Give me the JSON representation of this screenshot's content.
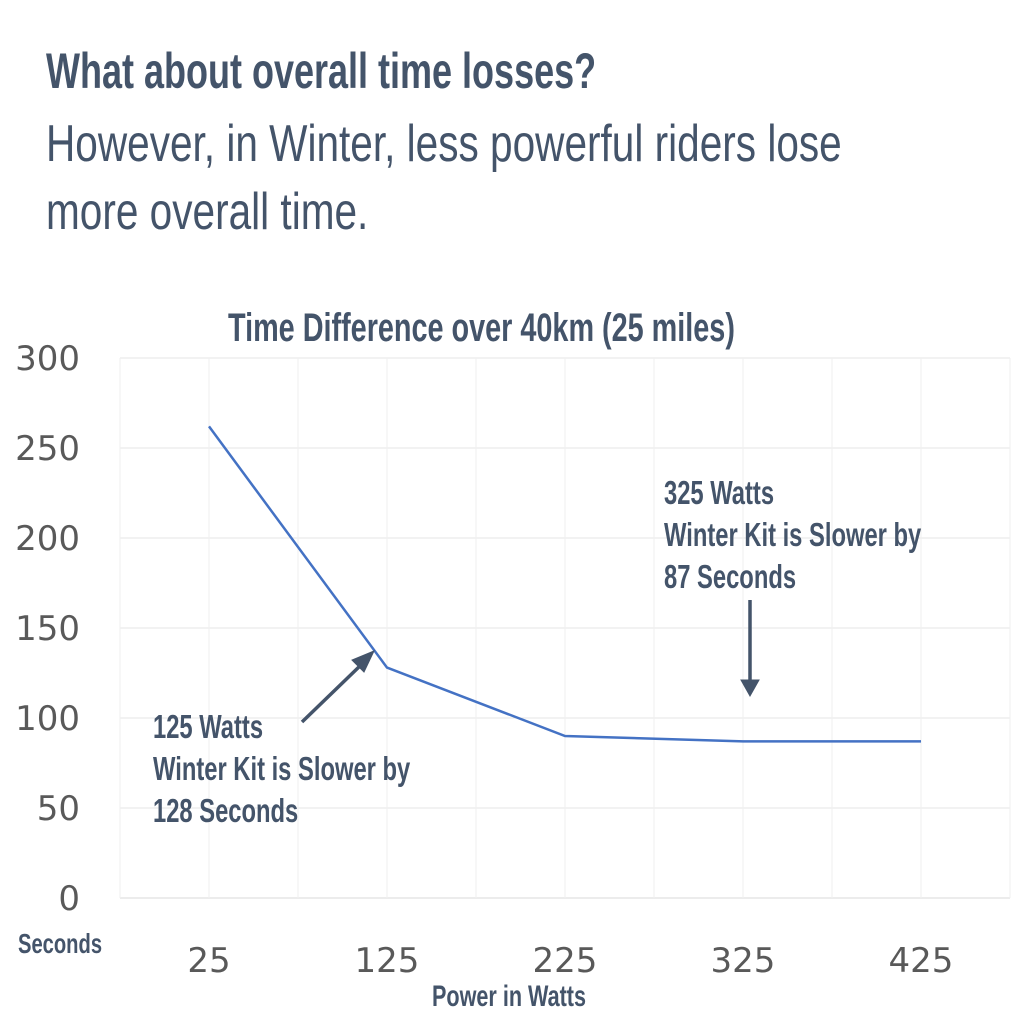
{
  "heading": "What about overall time losses?",
  "subtitle_lines": [
    "However, in Winter, less powerful riders lose",
    "more overall time."
  ],
  "chart_data": {
    "type": "line",
    "title": "Time Difference over 40km (25 miles)",
    "xlabel": "Power in Watts",
    "ylabel": "Seconds",
    "categories": [
      "25",
      "125",
      "225",
      "325",
      "425"
    ],
    "series": [
      {
        "name": "Time Difference",
        "values": [
          262,
          128,
          90,
          87,
          87
        ],
        "color": "#4472c4"
      }
    ],
    "ylim": [
      0,
      300
    ],
    "yticks": [
      "0",
      "50",
      "100",
      "150",
      "200",
      "250",
      "300"
    ],
    "grid": true,
    "annotations": [
      {
        "lines": [
          "125 Watts",
          "Winter Kit is Slower by",
          "128 Seconds"
        ],
        "target": "125"
      },
      {
        "lines": [
          "325 Watts",
          "Winter Kit is Slower by",
          "87 Seconds"
        ],
        "target": "325"
      }
    ]
  }
}
